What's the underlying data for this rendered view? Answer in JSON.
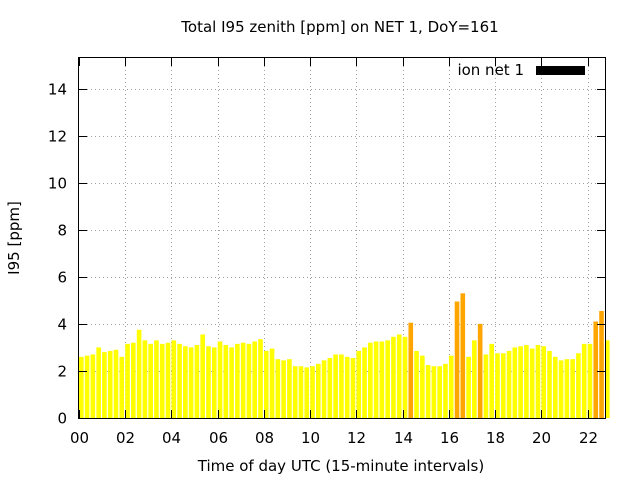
{
  "chart_data": {
    "type": "bar",
    "title": "Total I95 zenith [ppm] on NET 1, DoY=161",
    "xlabel": "Time of day UTC (15-minute intervals)",
    "ylabel": "I95 [ppm]",
    "xlim": [
      0,
      22.75
    ],
    "ylim": [
      0,
      15.3
    ],
    "x_ticks": [
      "00",
      "02",
      "04",
      "06",
      "08",
      "10",
      "12",
      "14",
      "16",
      "18",
      "20",
      "22"
    ],
    "y_ticks": [
      "0",
      "2",
      "4",
      "6",
      "8",
      "10",
      "12",
      "14"
    ],
    "grid": true,
    "legend": {
      "entries": [
        "ion net 1"
      ],
      "position": "top-right",
      "swatch_color": "#000000"
    },
    "highlight_threshold": 3.9,
    "colors": {
      "normal": "#ffff00",
      "high": "#ffa500"
    },
    "interval_hours": 0.25,
    "series": [
      {
        "values": [
          2.6,
          2.65,
          2.7,
          3.0,
          2.8,
          2.85,
          2.9,
          2.6,
          3.15,
          3.2,
          3.75,
          3.3,
          3.15,
          3.3,
          3.15,
          3.2,
          3.3,
          3.15,
          3.05,
          3.0,
          3.1,
          3.55,
          3.05,
          3.0,
          3.25,
          3.1,
          3.0,
          3.15,
          3.2,
          3.15,
          3.25,
          3.35,
          2.85,
          2.95,
          2.5,
          2.45,
          2.5,
          2.2,
          2.2,
          2.15,
          2.2,
          2.3,
          2.45,
          2.55,
          2.7,
          2.7,
          2.6,
          2.55,
          2.85,
          3.0,
          3.2,
          3.25,
          3.25,
          3.3,
          3.45,
          3.55,
          3.45,
          4.05,
          2.85,
          2.65,
          2.25,
          2.2,
          2.2,
          2.3,
          2.65,
          4.95,
          5.3,
          2.6,
          3.3,
          4.0,
          2.7,
          3.15,
          2.75,
          2.75,
          2.85,
          3.0,
          3.05,
          3.1,
          2.95,
          3.1,
          3.05,
          2.85,
          2.6,
          2.45,
          2.5,
          2.5,
          2.75,
          3.15,
          3.15,
          4.1,
          4.55,
          3.3
        ]
      }
    ]
  }
}
